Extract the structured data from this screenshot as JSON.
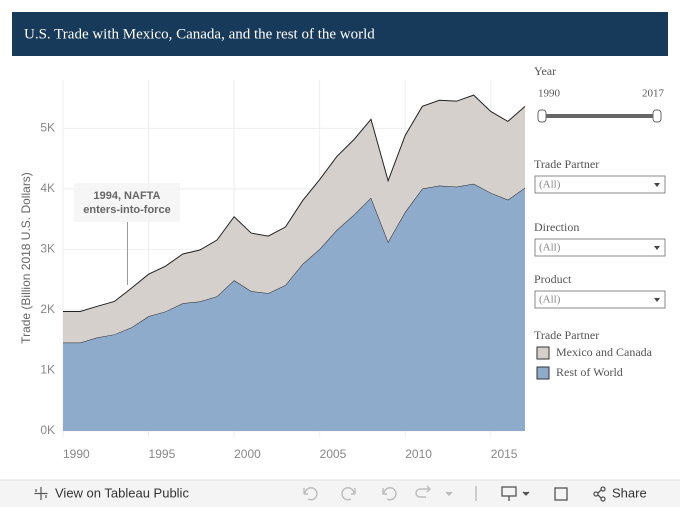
{
  "chart_data": {
    "type": "stacked_area",
    "title": "U.S. Trade with Mexico, Canada, and the rest of the world",
    "y_label": "Trade (Billion 2018 U.S. Dollars)",
    "x": [
      1990,
      1991,
      1992,
      1993,
      1994,
      1995,
      1996,
      1997,
      1998,
      1999,
      2000,
      2001,
      2002,
      2003,
      2004,
      2005,
      2006,
      2007,
      2008,
      2009,
      2010,
      2011,
      2012,
      2013,
      2014,
      2015,
      2016,
      2017
    ],
    "series": [
      {
        "name": "Mexico and Canada",
        "color": "#d6d0cd",
        "values": [
          515,
          515,
          515,
          545,
          650,
          695,
          750,
          815,
          850,
          930,
          1050,
          960,
          945,
          960,
          1045,
          1150,
          1215,
          1245,
          1295,
          1010,
          1265,
          1360,
          1410,
          1415,
          1465,
          1345,
          1295,
          1345
        ]
      },
      {
        "name": "Rest of World",
        "color": "#8fabcb",
        "values": [
          1460,
          1460,
          1545,
          1595,
          1710,
          1895,
          1975,
          2110,
          2140,
          2225,
          2490,
          2310,
          2275,
          2410,
          2760,
          3005,
          3320,
          3570,
          3855,
          3125,
          3620,
          4005,
          4055,
          4035,
          4085,
          3935,
          3820,
          4020
        ]
      }
    ],
    "xlim": [
      1990,
      2017
    ],
    "xticks": [
      1990,
      1995,
      2000,
      2005,
      2010,
      2015
    ],
    "ylim": [
      -100,
      5800
    ],
    "yticks": [
      {
        "value": 0,
        "label": "0K"
      },
      {
        "value": 1000,
        "label": "1K"
      },
      {
        "value": 2000,
        "label": "2K"
      },
      {
        "value": 3000,
        "label": "3K"
      },
      {
        "value": 4000,
        "label": "4K"
      },
      {
        "value": 5000,
        "label": "5K"
      }
    ],
    "grid": true,
    "annotation": {
      "lines": [
        "1994, NAFTA",
        "enters-into-force"
      ],
      "x": 1994
    },
    "legend_title": "Trade Partner"
  },
  "filters": {
    "year": {
      "label": "Year",
      "start": "1990",
      "end": "2017"
    },
    "dropdowns": [
      {
        "label": "Trade Partner",
        "value": "(All)"
      },
      {
        "label": "Direction",
        "value": "(All)"
      },
      {
        "label": "Product",
        "value": "(All)"
      }
    ]
  },
  "toolbar": {
    "view": "View on Tableau Public",
    "share": "Share"
  }
}
